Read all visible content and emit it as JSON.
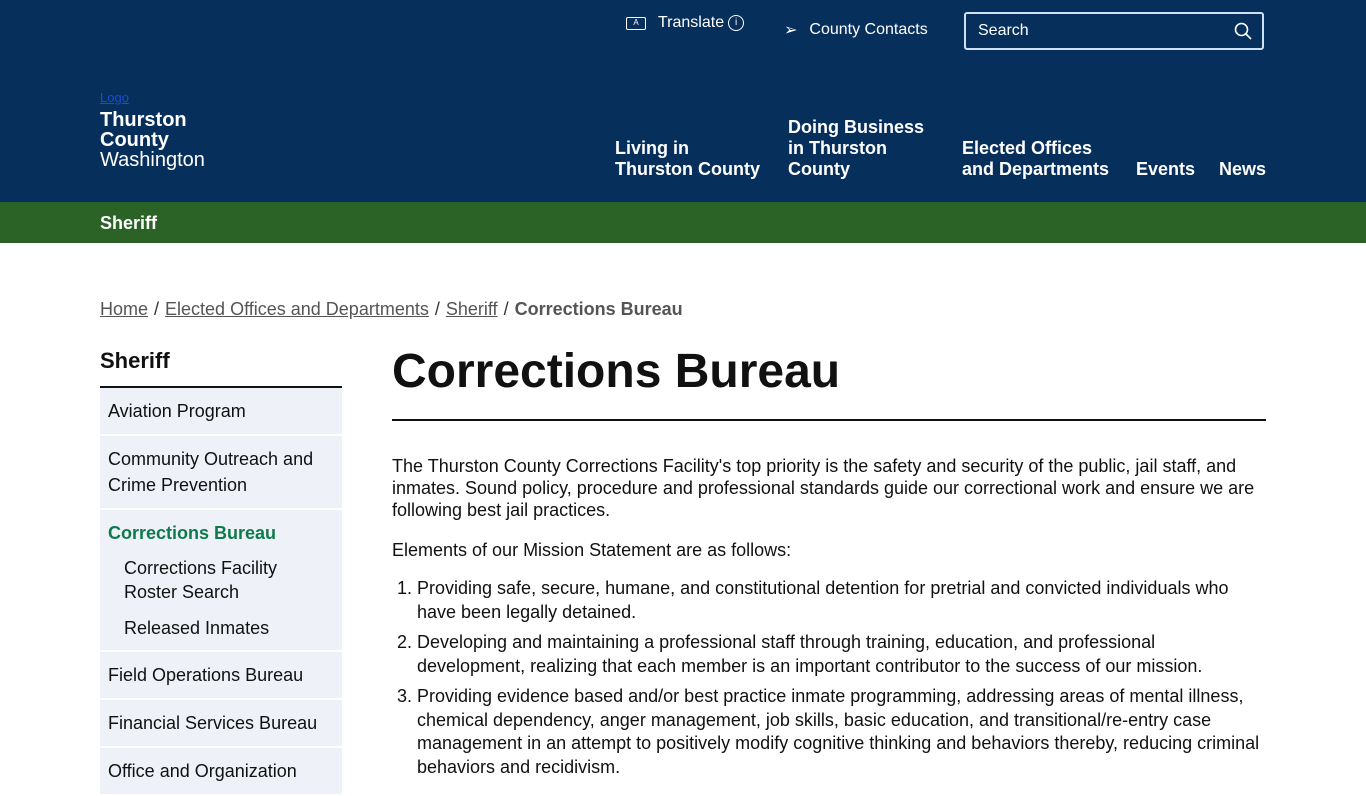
{
  "header": {
    "translate": "Translate",
    "county_contacts": "County Contacts",
    "search_placeholder": "Search",
    "logo_alt": "Logo",
    "site_name_1": "Thurston",
    "site_name_2": "County",
    "site_state": "Washington",
    "nav": [
      "Living in Thurston County",
      "Doing Business in Thurston County",
      "Elected Offices and Departments",
      "Events",
      "News"
    ]
  },
  "section_title": "Sheriff",
  "breadcrumb": [
    "Home",
    "Elected Offices and Departments",
    "Sheriff",
    "Corrections Bureau"
  ],
  "sidebar": {
    "title": "Sheriff",
    "items": [
      "Aviation Program",
      "Community Outreach and Crime Prevention",
      "Corrections Bureau",
      "Corrections Facility Roster Search",
      "Released Inmates",
      "Field Operations Bureau",
      "Financial Services Bureau",
      "Office and Organization"
    ]
  },
  "main": {
    "title": "Corrections Bureau",
    "intro": "The Thurston County Corrections Facility's top priority is the safety and security of the public, jail staff, and inmates. Sound policy, procedure and professional standards guide our correctional work and ensure we are following best jail practices.",
    "mission_lead": "Elements of our Mission Statement are as follows:",
    "mission": [
      "Providing safe, secure, humane, and constitutional detention for pretrial and convicted individuals who have been legally detained.",
      "Developing and maintaining a professional staff through training, education, and professional development, realizing that each member is an important contributor to the success of our mission.",
      "Providing evidence based and/or best practice inmate programming, addressing areas of mental illness, chemical dependency, anger management, job skills, basic education, and transitional/re-entry case management in an attempt to positively modify cognitive thinking and behaviors thereby, reducing criminal behaviors and recidivism."
    ]
  },
  "colors": {
    "header": "#072f5b",
    "section_bar": "#2b6327",
    "active": "#0e7a4c",
    "sidebar_bg": "#eef2f8"
  }
}
